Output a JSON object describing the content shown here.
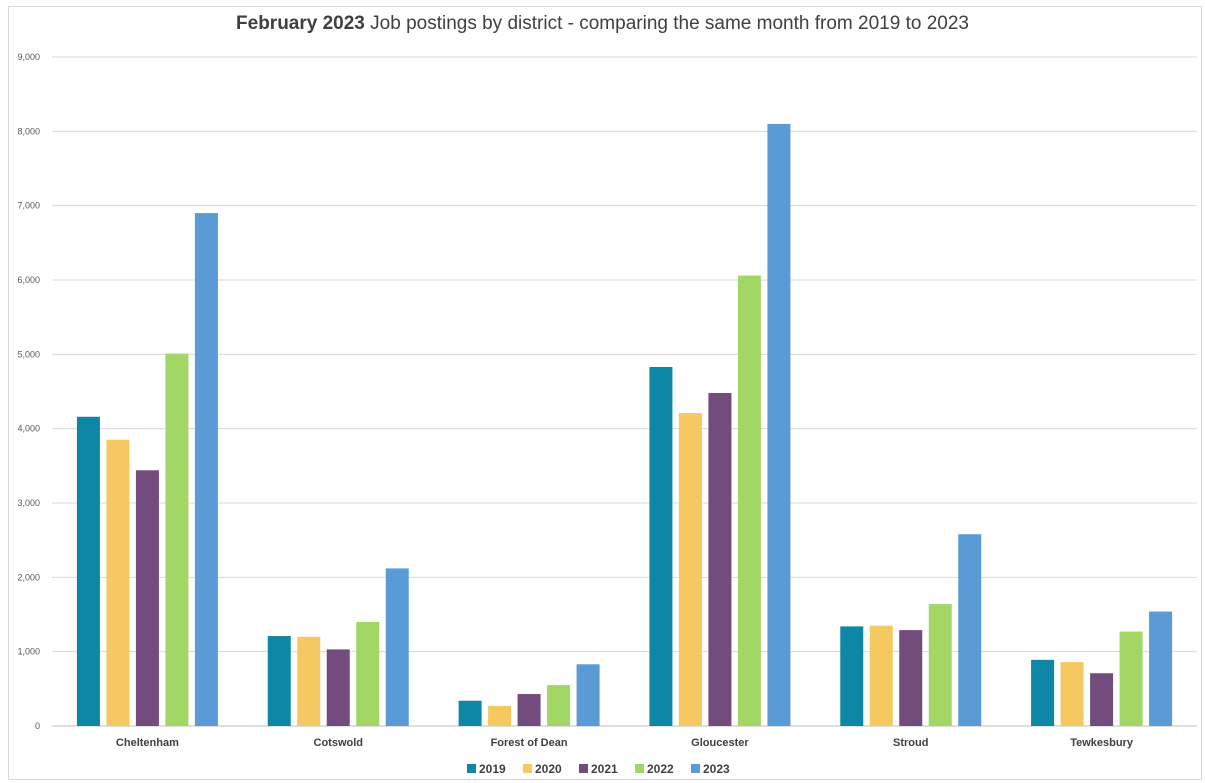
{
  "chart_data": {
    "type": "bar",
    "title_bold": "February 2023",
    "title_rest": " Job postings by district - comparing the same month from 2019 to 2023",
    "categories": [
      "Cheltenham",
      "Cotswold",
      "Forest of Dean",
      "Gloucester",
      "Stroud",
      "Tewkesbury"
    ],
    "series": [
      {
        "name": "2019",
        "color": "#0e86a5",
        "values": [
          4160,
          1210,
          340,
          4830,
          1340,
          890
        ]
      },
      {
        "name": "2020",
        "color": "#f5c862",
        "values": [
          3850,
          1200,
          270,
          4210,
          1350,
          860
        ]
      },
      {
        "name": "2021",
        "color": "#734c7d",
        "values": [
          3440,
          1030,
          430,
          4480,
          1290,
          710
        ]
      },
      {
        "name": "2022",
        "color": "#a2d665",
        "values": [
          5010,
          1400,
          550,
          6060,
          1640,
          1270
        ]
      },
      {
        "name": "2023",
        "color": "#5b9bd5",
        "values": [
          6900,
          2120,
          830,
          8100,
          2580,
          1540
        ]
      }
    ],
    "ylim": [
      0,
      9000
    ],
    "yticks": [
      0,
      1000,
      2000,
      3000,
      4000,
      5000,
      6000,
      7000,
      8000,
      9000
    ],
    "ytick_labels": [
      "0",
      "1,000",
      "2,000",
      "3,000",
      "4,000",
      "5,000",
      "6,000",
      "7,000",
      "8,000",
      "9,000"
    ],
    "grid": true,
    "legend_position": "bottom"
  }
}
